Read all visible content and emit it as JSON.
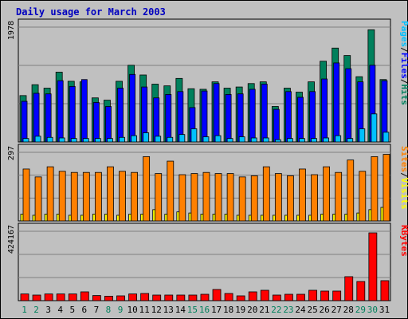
{
  "title": "Daily usage for March 2003",
  "colors": {
    "title": "#0000c0",
    "frame_bg": "#c0c0c0",
    "panel_bg": "#c0c0c0",
    "grid": "#808080",
    "hits": "#00805c",
    "files": "#0000ff",
    "pages": "#00c0ff",
    "visits": "#ffff00",
    "sites": "#ff8000",
    "kbytes": "#ff0000",
    "weekday_label": "#000000",
    "weekend_label": "#00805c",
    "slash": "#000000"
  },
  "chart_data": [
    {
      "type": "bar",
      "panel": "top",
      "y_tick_label": "1978",
      "ylim": [
        0,
        1978
      ],
      "legend": [
        "Pages",
        "/",
        "Files",
        "/",
        "Hits"
      ],
      "categories": [
        "1",
        "2",
        "3",
        "4",
        "5",
        "6",
        "7",
        "8",
        "9",
        "10",
        "11",
        "12",
        "13",
        "14",
        "15",
        "16",
        "17",
        "18",
        "19",
        "20",
        "21",
        "22",
        "23",
        "24",
        "25",
        "26",
        "27",
        "28",
        "29",
        "30",
        "31"
      ],
      "weekend_days": [
        "1",
        "2",
        "8",
        "9",
        "15",
        "16",
        "22",
        "23",
        "29",
        "30"
      ],
      "series": [
        {
          "name": "Hits",
          "values": [
            810,
            1000,
            940,
            1220,
            1060,
            1050,
            770,
            730,
            1060,
            1340,
            1170,
            1010,
            980,
            1110,
            930,
            920,
            1050,
            940,
            960,
            1020,
            1050,
            620,
            940,
            870,
            1050,
            1410,
            1640,
            1510,
            1140,
            1960,
            1090
          ]
        },
        {
          "name": "Files",
          "values": [
            710,
            850,
            840,
            1070,
            970,
            1090,
            690,
            620,
            940,
            1180,
            960,
            770,
            830,
            880,
            600,
            890,
            1020,
            830,
            840,
            920,
            1010,
            570,
            880,
            780,
            880,
            1100,
            1380,
            1280,
            1050,
            1340,
            1070
          ]
        },
        {
          "name": "Pages",
          "values": [
            60,
            100,
            80,
            70,
            60,
            60,
            60,
            60,
            80,
            110,
            160,
            100,
            80,
            130,
            230,
            90,
            110,
            60,
            90,
            70,
            70,
            40,
            60,
            60,
            60,
            70,
            110,
            60,
            230,
            490,
            170
          ]
        }
      ]
    },
    {
      "type": "bar",
      "panel": "middle",
      "y_tick_label": "297",
      "ylim": [
        0,
        297
      ],
      "legend": [
        "Sites",
        "/",
        "Visits"
      ],
      "categories": [
        "1",
        "2",
        "3",
        "4",
        "5",
        "6",
        "7",
        "8",
        "9",
        "10",
        "11",
        "12",
        "13",
        "14",
        "15",
        "16",
        "17",
        "18",
        "19",
        "20",
        "21",
        "22",
        "23",
        "24",
        "25",
        "26",
        "27",
        "28",
        "29",
        "30",
        "31"
      ],
      "series": [
        {
          "name": "Sites",
          "values": [
            230,
            195,
            240,
            220,
            215,
            215,
            215,
            240,
            220,
            215,
            285,
            210,
            265,
            205,
            210,
            215,
            210,
            210,
            195,
            200,
            240,
            210,
            200,
            230,
            205,
            240,
            215,
            270,
            220,
            285,
            295
          ]
        },
        {
          "name": "Visits",
          "values": [
            30,
            25,
            30,
            30,
            25,
            25,
            30,
            30,
            25,
            30,
            30,
            50,
            30,
            40,
            35,
            30,
            30,
            30,
            25,
            25,
            25,
            25,
            25,
            25,
            25,
            30,
            30,
            30,
            35,
            50,
            60
          ]
        }
      ]
    },
    {
      "type": "bar",
      "panel": "bottom",
      "y_tick_label": "424167",
      "ylim": [
        0,
        424167
      ],
      "legend": [
        "KBytes"
      ],
      "categories": [
        "1",
        "2",
        "3",
        "4",
        "5",
        "6",
        "7",
        "8",
        "9",
        "10",
        "11",
        "12",
        "13",
        "14",
        "15",
        "16",
        "17",
        "18",
        "19",
        "20",
        "21",
        "22",
        "23",
        "24",
        "25",
        "26",
        "27",
        "28",
        "29",
        "30",
        "31"
      ],
      "series": [
        {
          "name": "KBytes",
          "values": [
            42000,
            35000,
            42000,
            42000,
            42000,
            55000,
            32000,
            28000,
            30000,
            42000,
            45000,
            35000,
            35000,
            35000,
            35000,
            40000,
            70000,
            45000,
            30000,
            55000,
            65000,
            35000,
            40000,
            40000,
            65000,
            60000,
            60000,
            150000,
            120000,
            424167,
            125000
          ]
        }
      ]
    }
  ]
}
